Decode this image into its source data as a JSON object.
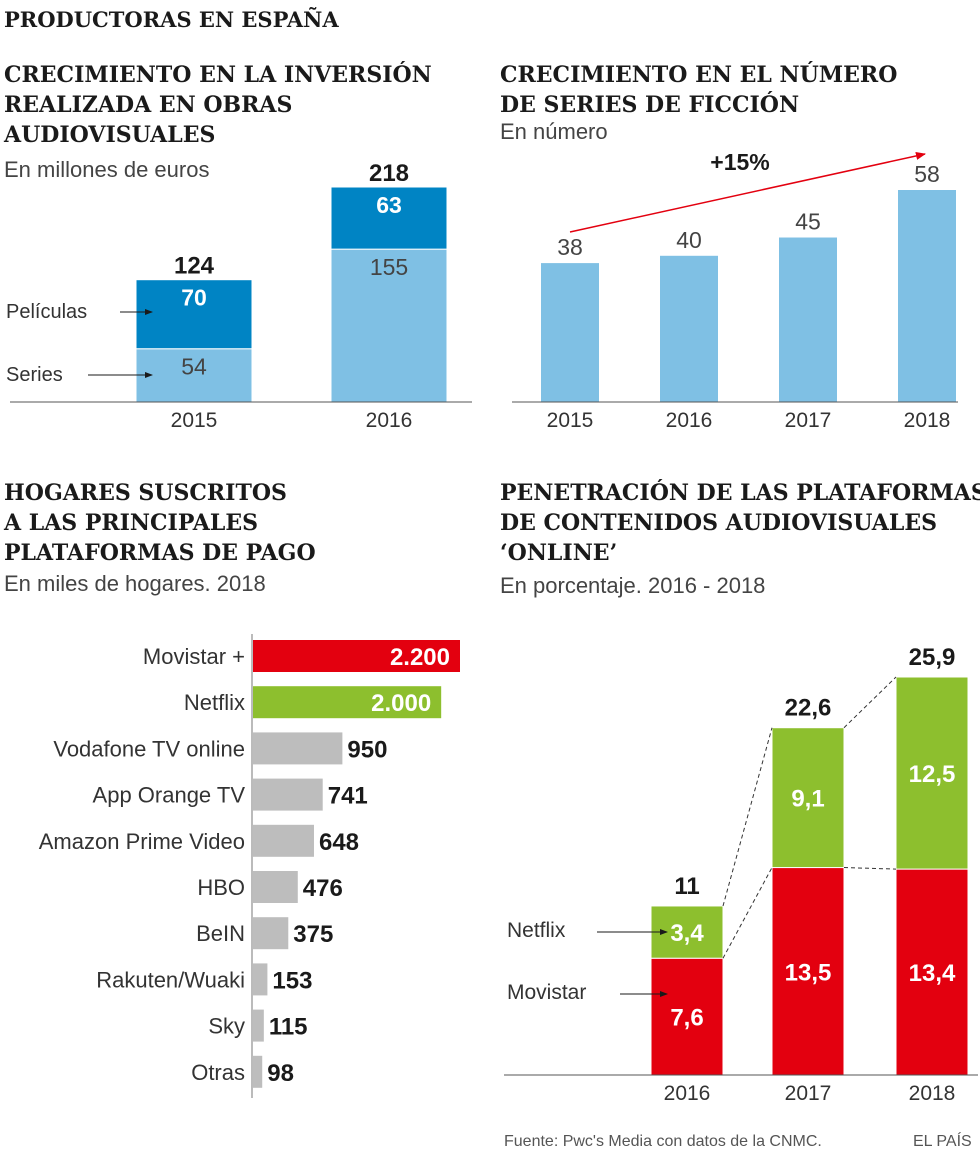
{
  "colors": {
    "light_blue": "#7fc0e4",
    "dark_blue": "#0084c4",
    "red": "#e3000f",
    "green": "#8dbf2e",
    "gray": "#bdbdbd",
    "text": "#1a1a1a",
    "subtext": "#444444",
    "axis": "#555555"
  },
  "header": {
    "title": "PRODUCTORAS EN ESPAÑA"
  },
  "footer": {
    "source": "Fuente: Pwc's Media con datos de la CNMC.",
    "credit": "EL PAÍS"
  },
  "chart_data": [
    {
      "id": "inversion",
      "type": "bar",
      "stacked": true,
      "title_lines": [
        "CRECIMIENTO EN LA INVERSIÓN",
        "REALIZADA EN OBRAS",
        "AUDIOVISUALES"
      ],
      "subtitle": "En millones de euros",
      "categories": [
        "2015",
        "2016"
      ],
      "series": [
        {
          "name": "Series",
          "values": [
            54,
            155
          ]
        },
        {
          "name": "Películas",
          "values": [
            70,
            63
          ]
        }
      ],
      "totals": [
        "124",
        "218"
      ],
      "ylim": [
        0,
        218
      ]
    },
    {
      "id": "series_ficcion",
      "type": "bar",
      "title_lines": [
        "CRECIMIENTO EN EL NÚMERO",
        "DE SERIES DE FICCIÓN"
      ],
      "subtitle": "En número",
      "categories": [
        "2015",
        "2016",
        "2017",
        "2018"
      ],
      "values": [
        38,
        40,
        45,
        58
      ],
      "annotation": "+15%",
      "ylim": [
        0,
        58
      ]
    },
    {
      "id": "hogares",
      "type": "bar",
      "orientation": "horizontal",
      "title_lines": [
        "HOGARES SUSCRITOS",
        "A LAS PRINCIPALES",
        "PLATAFORMAS DE PAGO"
      ],
      "subtitle": "En miles de hogares. 2018",
      "categories": [
        "Movistar +",
        "Netflix",
        "Vodafone TV online",
        "App Orange TV",
        "Amazon Prime Video",
        "HBO",
        "BeIN",
        "Rakuten/Wuaki",
        "Sky",
        "Otras"
      ],
      "values": [
        2200,
        2000,
        950,
        741,
        648,
        476,
        375,
        153,
        115,
        98
      ],
      "value_labels": [
        "2.200",
        "2.000",
        "950",
        "741",
        "648",
        "476",
        "375",
        "153",
        "115",
        "98"
      ],
      "xlim": [
        0,
        2200
      ]
    },
    {
      "id": "penetracion",
      "type": "bar",
      "stacked": true,
      "title_lines": [
        "PENETRACIÓN DE LAS PLATAFORMAS",
        "DE CONTENIDOS AUDIOVISUALES",
        "‘ONLINE’"
      ],
      "subtitle": "En porcentaje. 2016 - 2018",
      "categories": [
        "2016",
        "2017",
        "2018"
      ],
      "series": [
        {
          "name": "Movistar",
          "values": [
            7.6,
            13.5,
            13.4
          ],
          "labels": [
            "7,6",
            "13,5",
            "13,4"
          ]
        },
        {
          "name": "Netflix",
          "values": [
            3.4,
            9.1,
            12.5
          ],
          "labels": [
            "3,4",
            "9,1",
            "12,5"
          ]
        }
      ],
      "totals": [
        "11",
        "22,6",
        "25,9"
      ],
      "ylim": [
        0,
        25.9
      ]
    }
  ]
}
